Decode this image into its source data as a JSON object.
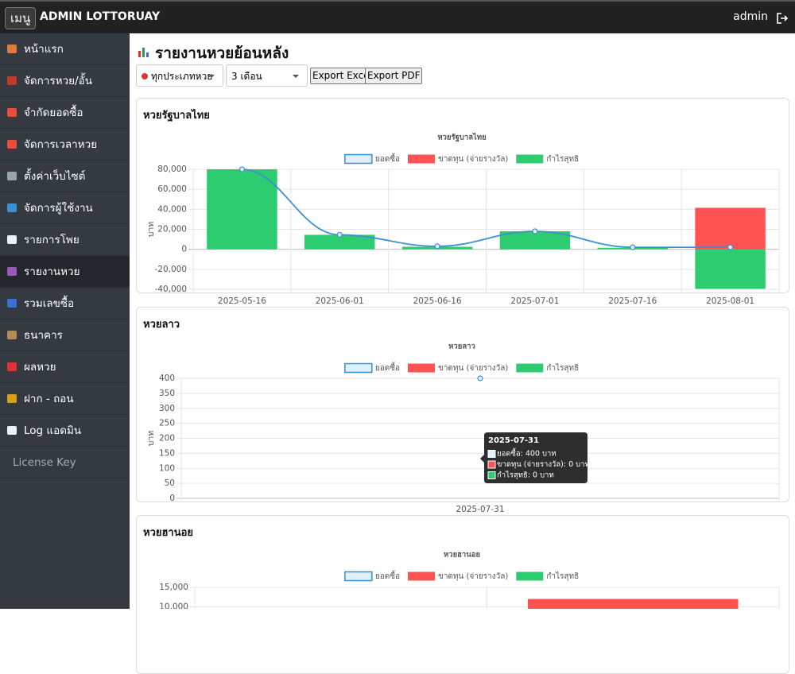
{
  "header": {
    "menu_button": "เมนู",
    "brand": "ADMIN LOTTORUAY",
    "user": "admin"
  },
  "sidebar": {
    "items": [
      "หน้าแรก",
      "จัดการหวย/อั้น",
      "จำกัดยอดซื้อ",
      "จัดการเวลาหวย",
      "ตั้งค่าเว็บไซต์",
      "จัดการผู้ใช้งาน",
      "รายการโพย",
      "รายงานหวย",
      "รวมเลขซื้อ",
      "ธนาคาร",
      "ผลหวย",
      "ฝาก - ถอน",
      "Log แอดมิน",
      "License Key"
    ],
    "active": 7
  },
  "page": {
    "title": "รายงานหวยย้อนหลัง",
    "filters": [
      "ทุกประเภทหวย",
      "3 เดือน"
    ],
    "buttons": [
      "Export Excel",
      "Export PDF"
    ]
  },
  "chart_data": [
    {
      "type": "bar",
      "card_title": "หวยรัฐบาลไทย",
      "title": "หวยรัฐบาลไทย",
      "y_label": "บาท",
      "categories": [
        "2025-05-16",
        "2025-06-01",
        "2025-06-16",
        "2025-07-01",
        "2025-07-16",
        "2025-08-01"
      ],
      "series": [
        {
          "name": "ยอดซื้อ",
          "type": "line",
          "color": "#3b8fd4",
          "background": "#dff0fb",
          "values": [
            80000,
            14500,
            3000,
            18000,
            2000,
            2000
          ]
        },
        {
          "name": "ขาดทุน (จ่ายรางวัล)",
          "type": "bar",
          "color": "#ff5252",
          "values": [
            0,
            0,
            0,
            0,
            0,
            41500
          ]
        },
        {
          "name": "กำไรสุทธิ",
          "type": "bar",
          "color": "#2ecc71",
          "values": [
            80000,
            14500,
            2500,
            18000,
            1500,
            -39500
          ]
        }
      ],
      "ylim": [
        -40000,
        80000
      ],
      "yticks": [
        {
          "value": 80000,
          "label": "80,000"
        },
        {
          "value": 60000,
          "label": "60,000"
        },
        {
          "value": 40000,
          "label": "40,000"
        },
        {
          "value": 20000,
          "label": "20,000"
        },
        0,
        {
          "value": -20000,
          "label": "-20,000"
        },
        {
          "value": -40000,
          "label": "-40,000"
        }
      ],
      "grid": true
    },
    {
      "type": "bar",
      "card_title": "หวยลาว",
      "title": "หวยลาว",
      "y_label": "บาท",
      "categories": [
        "2025-07-31"
      ],
      "series": [
        {
          "name": "ยอดซื้อ",
          "type": "line",
          "color": "#3b8fd4",
          "background": "#dff0fb",
          "values": [
            400
          ]
        },
        {
          "name": "ขาดทุน (จ่ายรางวัล)",
          "type": "bar",
          "color": "#ff5252",
          "values": [
            0
          ]
        },
        {
          "name": "กำไรสุทธิ",
          "type": "bar",
          "color": "#2ecc71",
          "values": [
            0
          ]
        }
      ],
      "ylim": [
        0,
        400
      ],
      "yticks": [
        400,
        350,
        300,
        250,
        200,
        150,
        100,
        50,
        0
      ],
      "grid": true,
      "tooltip": {
        "title": "2025-07-31",
        "lines": [
          "ยอดซื้อ: 400 บาท",
          "ขาดทุน (จ่ายรางวัล): 0 บาท",
          "กำไรสุทธิ: 0 บาท"
        ]
      }
    },
    {
      "type": "bar",
      "card_title": "หวยฮานอย",
      "title": "หวยฮานอย",
      "categories": [
        null,
        null
      ],
      "series": [
        {
          "name": "ยอดซื้อ",
          "type": "line",
          "color": "#3b8fd4",
          "background": "#dff0fb",
          "values": [
            null,
            null
          ]
        },
        {
          "name": "ขาดทุน (จ่ายรางวัล)",
          "type": "bar",
          "color": "#ff5252",
          "values": [
            null,
            12000
          ]
        },
        {
          "name": "กำไรสุทธิ",
          "type": "bar",
          "color": "#2ecc71",
          "values": [
            null,
            null
          ]
        }
      ],
      "ylim": [
        0,
        15000
      ],
      "yticks": [
        {
          "value": 15000,
          "label": "15,000"
        },
        {
          "value": 10000,
          "label": "10,000"
        }
      ],
      "grid": true
    }
  ]
}
